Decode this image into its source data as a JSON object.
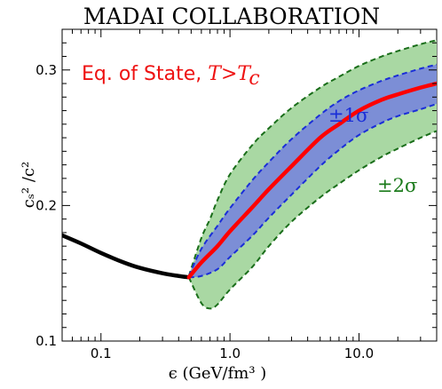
{
  "chart_data": {
    "type": "line",
    "title": "MADAI COLLABORATION",
    "xlabel": "ϵ (GeV/fm³ )",
    "ylabel": "cₛ² /c²",
    "x_scale": "log",
    "xlim": [
      0.05,
      40
    ],
    "ylim": [
      0.1,
      0.33
    ],
    "x_ticks": [
      {
        "value": 0.1,
        "label": "0.1"
      },
      {
        "value": 1.0,
        "label": "1.0"
      },
      {
        "value": 10.0,
        "label": "10.0"
      }
    ],
    "y_ticks": [
      {
        "value": 0.1,
        "label": "0.1"
      },
      {
        "value": 0.2,
        "label": "0.2"
      },
      {
        "value": 0.3,
        "label": "0.3"
      }
    ],
    "annotation": {
      "text": "Eq. of State, ",
      "math": "T>T",
      "math_sub": "c",
      "color": "#ee1111"
    },
    "band_labels": [
      {
        "text": "±1σ",
        "color": "#1a2ed8"
      },
      {
        "text": "±2σ",
        "color": "#1a7a1a"
      }
    ],
    "series": [
      {
        "name": "hadron gas",
        "role": "low_temperature_curve",
        "color": "#000000",
        "x": [
          0.05,
          0.07,
          0.1,
          0.15,
          0.2,
          0.3,
          0.4,
          0.48
        ],
        "y": [
          0.178,
          0.172,
          0.165,
          0.158,
          0.154,
          0.15,
          0.148,
          0.147
        ]
      },
      {
        "name": "mean",
        "role": "mean_curve",
        "color": "#ff0000",
        "x": [
          0.48,
          0.6,
          0.8,
          1.0,
          1.5,
          2.0,
          3.0,
          5.0,
          7.0,
          10.0,
          15.0,
          20.0,
          30.0,
          40.0
        ],
        "y": [
          0.147,
          0.158,
          0.17,
          0.181,
          0.199,
          0.212,
          0.229,
          0.25,
          0.26,
          0.27,
          0.278,
          0.282,
          0.287,
          0.29
        ]
      }
    ],
    "bands": [
      {
        "name": "±2σ",
        "fill": "#a9d8a3",
        "edge": "#1a6e1a",
        "x": [
          0.48,
          0.6,
          0.7,
          0.8,
          1.0,
          1.5,
          2.0,
          3.0,
          5.0,
          7.0,
          10.0,
          15.0,
          20.0,
          30.0,
          40.0
        ],
        "upper": [
          0.148,
          0.176,
          0.19,
          0.204,
          0.223,
          0.245,
          0.257,
          0.272,
          0.287,
          0.295,
          0.303,
          0.31,
          0.314,
          0.319,
          0.322
        ],
        "lower": [
          0.147,
          0.128,
          0.124,
          0.127,
          0.138,
          0.155,
          0.17,
          0.188,
          0.206,
          0.216,
          0.226,
          0.236,
          0.242,
          0.25,
          0.255
        ]
      },
      {
        "name": "±1σ",
        "fill": "#7c8ed6",
        "edge": "#1a2ed8",
        "x": [
          0.48,
          0.6,
          0.8,
          1.0,
          1.5,
          2.0,
          3.0,
          5.0,
          7.0,
          10.0,
          15.0,
          20.0,
          30.0,
          40.0
        ],
        "upper": [
          0.148,
          0.168,
          0.185,
          0.198,
          0.219,
          0.232,
          0.249,
          0.267,
          0.277,
          0.285,
          0.292,
          0.296,
          0.301,
          0.304
        ],
        "lower": [
          0.147,
          0.148,
          0.153,
          0.162,
          0.178,
          0.191,
          0.208,
          0.229,
          0.241,
          0.252,
          0.261,
          0.266,
          0.271,
          0.275
        ]
      }
    ]
  }
}
